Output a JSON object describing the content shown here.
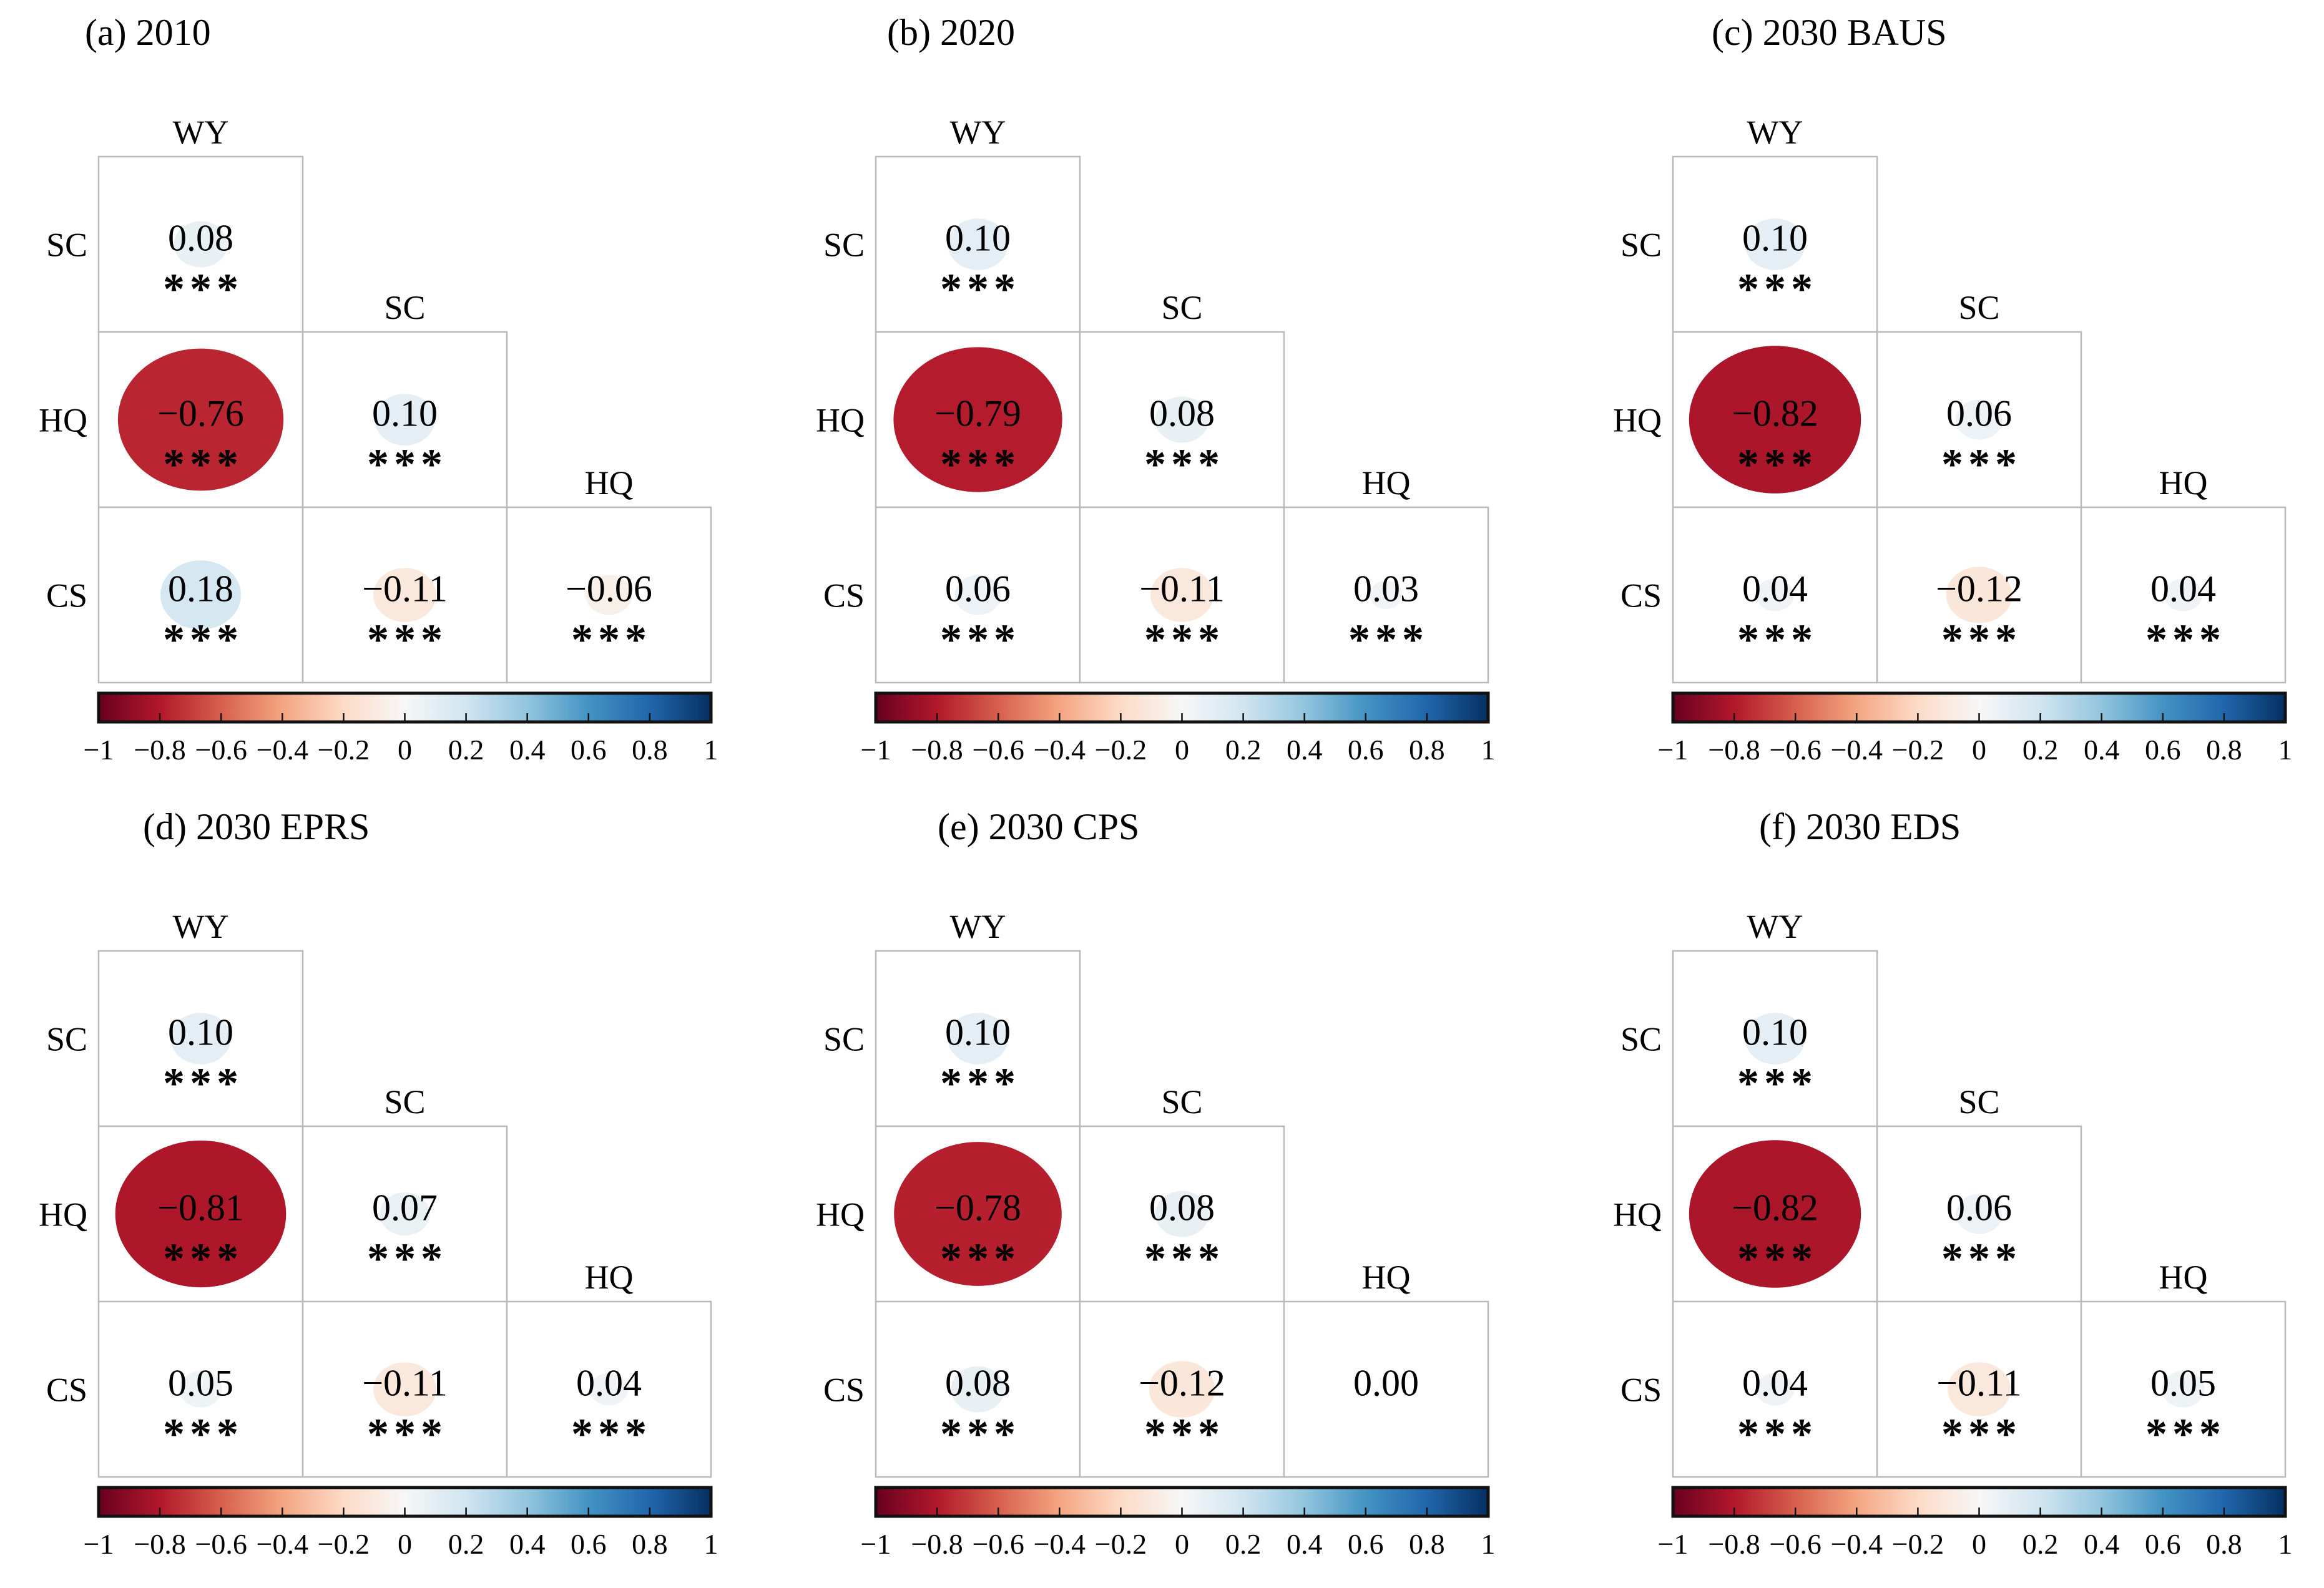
{
  "figure": {
    "kind": "correlation matrix figure, six panels, lower triangle with circles sized/colored by r and significance stars"
  },
  "colormap": {
    "name": "RdBu",
    "stops": [
      {
        "v": -1.0,
        "color": "#67001f"
      },
      {
        "v": -0.8,
        "color": "#b2182b"
      },
      {
        "v": -0.6,
        "color": "#d6604d"
      },
      {
        "v": -0.4,
        "color": "#f4a582"
      },
      {
        "v": -0.2,
        "color": "#fddbc7"
      },
      {
        "v": 0.0,
        "color": "#f7f7f7"
      },
      {
        "v": 0.2,
        "color": "#d1e5f0"
      },
      {
        "v": 0.4,
        "color": "#92c5de"
      },
      {
        "v": 0.6,
        "color": "#4393c3"
      },
      {
        "v": 0.8,
        "color": "#2166ac"
      },
      {
        "v": 1.0,
        "color": "#053061"
      }
    ]
  },
  "colorbar": {
    "tick_labels": [
      "−1",
      "−0.8",
      "−0.6",
      "−0.4",
      "−0.2",
      "0",
      "0.2",
      "0.4",
      "0.6",
      "0.8",
      "1"
    ],
    "range": [
      -1,
      1
    ],
    "border_color": "#111111"
  },
  "chart_data": [
    {
      "type": "heatmap",
      "subtype": "correlation_matrix_lower_triangle",
      "panel": "a",
      "title": "(a) 2010",
      "row_labels": [
        "SC",
        "HQ",
        "CS"
      ],
      "col_labels": [
        "WY",
        "SC",
        "HQ"
      ],
      "cells": [
        {
          "row": "SC",
          "col": "WY",
          "r": 0.08,
          "label": "0.08",
          "stars": "***"
        },
        {
          "row": "HQ",
          "col": "WY",
          "r": -0.76,
          "label": "−0.76",
          "stars": "***"
        },
        {
          "row": "HQ",
          "col": "SC",
          "r": 0.1,
          "label": "0.10",
          "stars": "***"
        },
        {
          "row": "CS",
          "col": "WY",
          "r": 0.18,
          "label": "0.18",
          "stars": "***"
        },
        {
          "row": "CS",
          "col": "SC",
          "r": -0.11,
          "label": "−0.11",
          "stars": "***"
        },
        {
          "row": "CS",
          "col": "HQ",
          "r": -0.06,
          "label": "−0.06",
          "stars": "***"
        }
      ]
    },
    {
      "type": "heatmap",
      "subtype": "correlation_matrix_lower_triangle",
      "panel": "b",
      "title": "(b) 2020",
      "row_labels": [
        "SC",
        "HQ",
        "CS"
      ],
      "col_labels": [
        "WY",
        "SC",
        "HQ"
      ],
      "cells": [
        {
          "row": "SC",
          "col": "WY",
          "r": 0.1,
          "label": "0.10",
          "stars": "***"
        },
        {
          "row": "HQ",
          "col": "WY",
          "r": -0.79,
          "label": "−0.79",
          "stars": "***"
        },
        {
          "row": "HQ",
          "col": "SC",
          "r": 0.08,
          "label": "0.08",
          "stars": "***"
        },
        {
          "row": "CS",
          "col": "WY",
          "r": 0.06,
          "label": "0.06",
          "stars": "***"
        },
        {
          "row": "CS",
          "col": "SC",
          "r": -0.11,
          "label": "−0.11",
          "stars": "***"
        },
        {
          "row": "CS",
          "col": "HQ",
          "r": 0.03,
          "label": "0.03",
          "stars": "***"
        }
      ]
    },
    {
      "type": "heatmap",
      "subtype": "correlation_matrix_lower_triangle",
      "panel": "c",
      "title": "(c) 2030 BAUS",
      "row_labels": [
        "SC",
        "HQ",
        "CS"
      ],
      "col_labels": [
        "WY",
        "SC",
        "HQ"
      ],
      "cells": [
        {
          "row": "SC",
          "col": "WY",
          "r": 0.1,
          "label": "0.10",
          "stars": "***"
        },
        {
          "row": "HQ",
          "col": "WY",
          "r": -0.82,
          "label": "−0.82",
          "stars": "***"
        },
        {
          "row": "HQ",
          "col": "SC",
          "r": 0.06,
          "label": "0.06",
          "stars": "***"
        },
        {
          "row": "CS",
          "col": "WY",
          "r": 0.04,
          "label": "0.04",
          "stars": "***"
        },
        {
          "row": "CS",
          "col": "SC",
          "r": -0.12,
          "label": "−0.12",
          "stars": "***"
        },
        {
          "row": "CS",
          "col": "HQ",
          "r": 0.04,
          "label": "0.04",
          "stars": "***"
        }
      ]
    },
    {
      "type": "heatmap",
      "subtype": "correlation_matrix_lower_triangle",
      "panel": "d",
      "title": "(d) 2030 EPRS",
      "row_labels": [
        "SC",
        "HQ",
        "CS"
      ],
      "col_labels": [
        "WY",
        "SC",
        "HQ"
      ],
      "cells": [
        {
          "row": "SC",
          "col": "WY",
          "r": 0.1,
          "label": "0.10",
          "stars": "***"
        },
        {
          "row": "HQ",
          "col": "WY",
          "r": -0.81,
          "label": "−0.81",
          "stars": "***"
        },
        {
          "row": "HQ",
          "col": "SC",
          "r": 0.07,
          "label": "0.07",
          "stars": "***"
        },
        {
          "row": "CS",
          "col": "WY",
          "r": 0.05,
          "label": "0.05",
          "stars": "***"
        },
        {
          "row": "CS",
          "col": "SC",
          "r": -0.11,
          "label": "−0.11",
          "stars": "***"
        },
        {
          "row": "CS",
          "col": "HQ",
          "r": 0.04,
          "label": "0.04",
          "stars": "***"
        }
      ]
    },
    {
      "type": "heatmap",
      "subtype": "correlation_matrix_lower_triangle",
      "panel": "e",
      "title": "(e) 2030 CPS",
      "row_labels": [
        "SC",
        "HQ",
        "CS"
      ],
      "col_labels": [
        "WY",
        "SC",
        "HQ"
      ],
      "cells": [
        {
          "row": "SC",
          "col": "WY",
          "r": 0.1,
          "label": "0.10",
          "stars": "***"
        },
        {
          "row": "HQ",
          "col": "WY",
          "r": -0.78,
          "label": "−0.78",
          "stars": "***"
        },
        {
          "row": "HQ",
          "col": "SC",
          "r": 0.08,
          "label": "0.08",
          "stars": "***"
        },
        {
          "row": "CS",
          "col": "WY",
          "r": 0.08,
          "label": "0.08",
          "stars": "***"
        },
        {
          "row": "CS",
          "col": "SC",
          "r": -0.12,
          "label": "−0.12",
          "stars": "***"
        },
        {
          "row": "CS",
          "col": "HQ",
          "r": 0.0,
          "label": "0.00",
          "stars": ""
        }
      ]
    },
    {
      "type": "heatmap",
      "subtype": "correlation_matrix_lower_triangle",
      "panel": "f",
      "title": "(f) 2030 EDS",
      "row_labels": [
        "SC",
        "HQ",
        "CS"
      ],
      "col_labels": [
        "WY",
        "SC",
        "HQ"
      ],
      "cells": [
        {
          "row": "SC",
          "col": "WY",
          "r": 0.1,
          "label": "0.10",
          "stars": "***"
        },
        {
          "row": "HQ",
          "col": "WY",
          "r": -0.82,
          "label": "−0.82",
          "stars": "***"
        },
        {
          "row": "HQ",
          "col": "SC",
          "r": 0.06,
          "label": "0.06",
          "stars": "***"
        },
        {
          "row": "CS",
          "col": "WY",
          "r": 0.04,
          "label": "0.04",
          "stars": "***"
        },
        {
          "row": "CS",
          "col": "SC",
          "r": -0.11,
          "label": "−0.11",
          "stars": "***"
        },
        {
          "row": "CS",
          "col": "HQ",
          "r": 0.05,
          "label": "0.05",
          "stars": "***"
        }
      ]
    }
  ]
}
